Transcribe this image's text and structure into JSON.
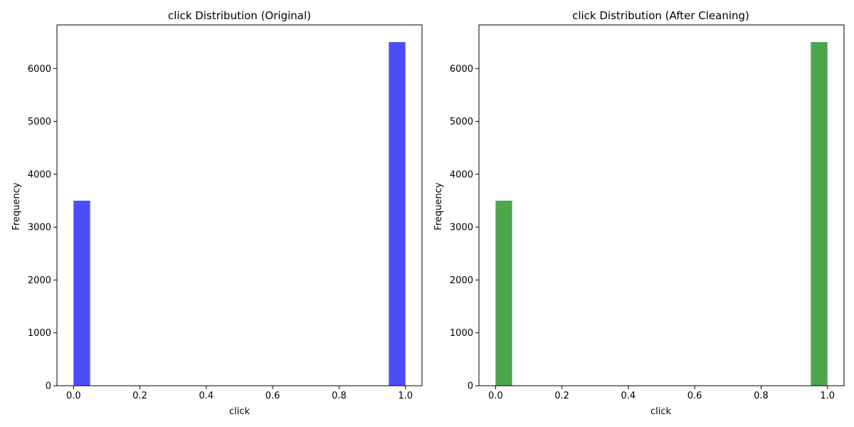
{
  "chart_data": [
    {
      "type": "bar",
      "title": "click Distribution (Original)",
      "xlabel": "click",
      "ylabel": "Frequency",
      "color": "#4c4cff",
      "bin_width": 0.05,
      "bins": [
        {
          "x_start": 0.0,
          "x_end": 0.05,
          "value": 3500
        },
        {
          "x_start": 0.95,
          "x_end": 1.0,
          "value": 6500
        }
      ],
      "xlim": [
        -0.05,
        1.05
      ],
      "ylim": [
        0,
        6825
      ],
      "xticks": [
        0.0,
        0.2,
        0.4,
        0.6,
        0.8,
        1.0
      ],
      "xtick_labels": [
        "0.0",
        "0.2",
        "0.4",
        "0.6",
        "0.8",
        "1.0"
      ],
      "yticks": [
        0,
        1000,
        2000,
        3000,
        4000,
        5000,
        6000
      ],
      "ytick_labels": [
        "0",
        "1000",
        "2000",
        "3000",
        "4000",
        "5000",
        "6000"
      ],
      "grid": false,
      "legend": "none"
    },
    {
      "type": "bar",
      "title": "click Distribution (After Cleaning)",
      "xlabel": "click",
      "ylabel": "Frequency",
      "color": "#4ca64c",
      "bin_width": 0.05,
      "bins": [
        {
          "x_start": 0.0,
          "x_end": 0.05,
          "value": 3500
        },
        {
          "x_start": 0.95,
          "x_end": 1.0,
          "value": 6500
        }
      ],
      "xlim": [
        -0.05,
        1.05
      ],
      "ylim": [
        0,
        6825
      ],
      "xticks": [
        0.0,
        0.2,
        0.4,
        0.6,
        0.8,
        1.0
      ],
      "xtick_labels": [
        "0.0",
        "0.2",
        "0.4",
        "0.6",
        "0.8",
        "1.0"
      ],
      "yticks": [
        0,
        1000,
        2000,
        3000,
        4000,
        5000,
        6000
      ],
      "ytick_labels": [
        "0",
        "1000",
        "2000",
        "3000",
        "4000",
        "5000",
        "6000"
      ],
      "grid": false,
      "legend": "none"
    }
  ]
}
